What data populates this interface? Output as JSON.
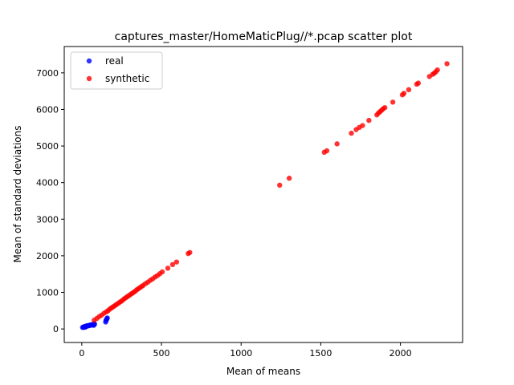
{
  "chart_data": {
    "type": "scatter",
    "title": "captures_master/HomeMaticPlug//*.pcap scatter plot",
    "xlabel": "Mean of means",
    "ylabel": "Mean of standard deviations",
    "xlim": [
      -110,
      2390
    ],
    "ylim": [
      -370,
      7720
    ],
    "xticks": [
      0,
      500,
      1000,
      1500,
      2000
    ],
    "xtick_labels": [
      "0",
      "500",
      "1000",
      "1500",
      "2000"
    ],
    "yticks": [
      0,
      1000,
      2000,
      3000,
      4000,
      5000,
      6000,
      7000
    ],
    "ytick_labels": [
      "0",
      "1000",
      "2000",
      "3000",
      "4000",
      "5000",
      "6000",
      "7000"
    ],
    "grid": false,
    "legend": {
      "placement": "top-left"
    },
    "series": [
      {
        "name": "real",
        "color": "#0000ff",
        "x": [
          5,
          10,
          15,
          18,
          20,
          22,
          25,
          28,
          30,
          35,
          40,
          45,
          50,
          55,
          60,
          65,
          70,
          75,
          78,
          80,
          150,
          152,
          155,
          158,
          160
        ],
        "y": [
          40,
          55,
          45,
          60,
          70,
          50,
          65,
          80,
          75,
          90,
          85,
          100,
          95,
          110,
          105,
          120,
          115,
          100,
          150,
          130,
          190,
          230,
          260,
          280,
          300
        ]
      },
      {
        "name": "synthetic",
        "color": "#ff0000",
        "x": [
          78,
          95,
          110,
          125,
          140,
          155,
          165,
          175,
          185,
          195,
          205,
          215,
          225,
          235,
          245,
          255,
          265,
          275,
          285,
          295,
          305,
          315,
          325,
          335,
          345,
          355,
          365,
          375,
          385,
          400,
          415,
          430,
          445,
          460,
          475,
          490,
          505,
          540,
          570,
          595,
          668,
          678,
          1242,
          1302,
          1522,
          1538,
          1602,
          1692,
          1722,
          1742,
          1762,
          1802,
          1852,
          1862,
          1872,
          1882,
          1892,
          1902,
          1952,
          2012,
          2022,
          2052,
          2102,
          2112,
          2182,
          2202,
          2212,
          2222,
          2232,
          2292
        ],
        "y": [
          240,
          290,
          340,
          380,
          430,
          470,
          500,
          540,
          570,
          600,
          630,
          660,
          690,
          720,
          750,
          780,
          820,
          850,
          880,
          910,
          940,
          970,
          1000,
          1030,
          1070,
          1100,
          1130,
          1160,
          1190,
          1240,
          1280,
          1330,
          1370,
          1420,
          1460,
          1510,
          1560,
          1660,
          1760,
          1830,
          2060,
          2090,
          3930,
          4120,
          4830,
          4870,
          5060,
          5350,
          5450,
          5510,
          5560,
          5700,
          5850,
          5900,
          5940,
          5980,
          6020,
          6050,
          6200,
          6400,
          6440,
          6540,
          6690,
          6720,
          6900,
          6960,
          6990,
          7030,
          7080,
          7250
        ]
      }
    ]
  }
}
